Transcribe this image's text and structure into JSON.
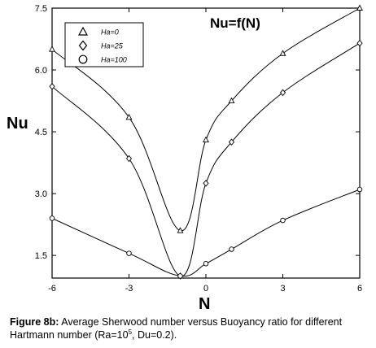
{
  "chart_data": {
    "type": "line",
    "title": "Nu=f(N)",
    "xlabel": "N",
    "ylabel": "Nu",
    "xlim": [
      -6,
      6
    ],
    "ylim": [
      0.95,
      7.5
    ],
    "xticks": [
      -6,
      -3,
      0,
      3,
      6
    ],
    "xtick_labels": [
      "-6",
      "-3",
      "0",
      "3",
      "6"
    ],
    "yticks": [
      1.5,
      3.0,
      4.5,
      6.0,
      7.5
    ],
    "ytick_labels": [
      "1.5",
      "3.0",
      "4.5",
      "6.0",
      "7.5"
    ],
    "grid": false,
    "legend_position": "top-left",
    "series": [
      {
        "name": "Ha=0",
        "marker": "triangle",
        "x": [
          -6,
          -3,
          -1,
          0,
          1,
          3,
          6
        ],
        "y": [
          6.5,
          4.85,
          2.1,
          4.3,
          5.25,
          6.4,
          7.5
        ]
      },
      {
        "name": "Ha=25",
        "marker": "diamond",
        "x": [
          -6,
          -3,
          -1,
          0,
          1,
          3,
          6
        ],
        "y": [
          5.6,
          3.85,
          1.0,
          3.25,
          4.25,
          5.45,
          6.65
        ]
      },
      {
        "name": "Ha=100",
        "marker": "circle",
        "x": [
          -6,
          -3,
          -1,
          0,
          1,
          3,
          6
        ],
        "y": [
          2.4,
          1.55,
          1.0,
          1.3,
          1.65,
          2.35,
          3.1
        ]
      }
    ]
  },
  "caption": {
    "label": "Figure 8b:",
    "text_before_sup": " Average Sherwood number versus Buoyancy ratio for different Hartmann number (Ra=10",
    "sup": "5",
    "text_after_sup": ", Du=0.2)."
  }
}
